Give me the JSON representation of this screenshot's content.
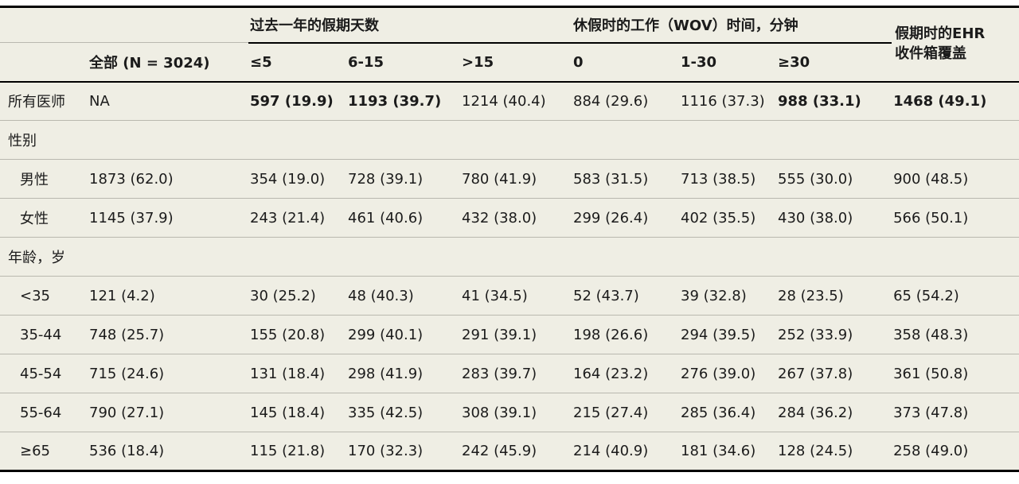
{
  "colors": {
    "table_background": "#efeee4",
    "border_dark": "#000000",
    "border_light": "#b9b8af",
    "text": "#1b1b1b"
  },
  "table": {
    "group_headers": [
      {
        "label": "过去一年的假期天数"
      },
      {
        "label": "休假时的工作（WOV）时间，分钟"
      }
    ],
    "ehr_header": {
      "line1": "假期时的EHR",
      "line2": "收件箱覆盖"
    },
    "sub_headers": [
      "全部 (N = 3024)",
      "≤5",
      "6-15",
      ">15",
      "0",
      "1-30",
      "≥30"
    ],
    "rows": [
      {
        "type": "data",
        "label": "所有医师",
        "indent": false,
        "cells": [
          {
            "text": "NA",
            "bold": false
          },
          {
            "text": "597 (19.9)",
            "bold": true
          },
          {
            "text": "1193 (39.7)",
            "bold": true
          },
          {
            "text": "1214 (40.4)",
            "bold": false
          },
          {
            "text": "884 (29.6)",
            "bold": false
          },
          {
            "text": "1116 (37.3)",
            "bold": false
          },
          {
            "text": "988 (33.1)",
            "bold": true
          },
          {
            "text": "1468 (49.1)",
            "bold": true
          }
        ]
      },
      {
        "type": "section",
        "label": "性别"
      },
      {
        "type": "data",
        "label": "男性",
        "indent": true,
        "cells": [
          {
            "text": "1873 (62.0)",
            "bold": false
          },
          {
            "text": "354 (19.0)",
            "bold": false
          },
          {
            "text": "728 (39.1)",
            "bold": false
          },
          {
            "text": "780 (41.9)",
            "bold": false
          },
          {
            "text": "583 (31.5)",
            "bold": false
          },
          {
            "text": "713 (38.5)",
            "bold": false
          },
          {
            "text": "555 (30.0)",
            "bold": false
          },
          {
            "text": "900 (48.5)",
            "bold": false
          }
        ]
      },
      {
        "type": "data",
        "label": "女性",
        "indent": true,
        "cells": [
          {
            "text": "1145 (37.9)",
            "bold": false
          },
          {
            "text": "243 (21.4)",
            "bold": false
          },
          {
            "text": "461 (40.6)",
            "bold": false
          },
          {
            "text": "432 (38.0)",
            "bold": false
          },
          {
            "text": "299 (26.4)",
            "bold": false
          },
          {
            "text": "402 (35.5)",
            "bold": false
          },
          {
            "text": "430 (38.0)",
            "bold": false
          },
          {
            "text": "566 (50.1)",
            "bold": false
          }
        ]
      },
      {
        "type": "section",
        "label": "年龄，岁"
      },
      {
        "type": "data",
        "label": "<35",
        "indent": true,
        "cells": [
          {
            "text": "121 (4.2)",
            "bold": false
          },
          {
            "text": "30 (25.2)",
            "bold": false
          },
          {
            "text": "48 (40.3)",
            "bold": false
          },
          {
            "text": "41 (34.5)",
            "bold": false
          },
          {
            "text": "52 (43.7)",
            "bold": false
          },
          {
            "text": "39 (32.8)",
            "bold": false
          },
          {
            "text": "28 (23.5)",
            "bold": false
          },
          {
            "text": "65 (54.2)",
            "bold": false
          }
        ]
      },
      {
        "type": "data",
        "label": "35-44",
        "indent": true,
        "cells": [
          {
            "text": "748 (25.7)",
            "bold": false
          },
          {
            "text": "155 (20.8)",
            "bold": false
          },
          {
            "text": "299 (40.1)",
            "bold": false
          },
          {
            "text": "291 (39.1)",
            "bold": false
          },
          {
            "text": "198 (26.6)",
            "bold": false
          },
          {
            "text": "294 (39.5)",
            "bold": false
          },
          {
            "text": "252 (33.9)",
            "bold": false
          },
          {
            "text": "358 (48.3)",
            "bold": false
          }
        ]
      },
      {
        "type": "data",
        "label": "45-54",
        "indent": true,
        "cells": [
          {
            "text": "715 (24.6)",
            "bold": false
          },
          {
            "text": "131 (18.4)",
            "bold": false
          },
          {
            "text": "298 (41.9)",
            "bold": false
          },
          {
            "text": "283 (39.7)",
            "bold": false
          },
          {
            "text": "164 (23.2)",
            "bold": false
          },
          {
            "text": "276 (39.0)",
            "bold": false
          },
          {
            "text": "267 (37.8)",
            "bold": false
          },
          {
            "text": "361 (50.8)",
            "bold": false
          }
        ]
      },
      {
        "type": "data",
        "label": "55-64",
        "indent": true,
        "cells": [
          {
            "text": "790 (27.1)",
            "bold": false
          },
          {
            "text": "145 (18.4)",
            "bold": false
          },
          {
            "text": "335 (42.5)",
            "bold": false
          },
          {
            "text": "308 (39.1)",
            "bold": false
          },
          {
            "text": "215 (27.4)",
            "bold": false
          },
          {
            "text": "285 (36.4)",
            "bold": false
          },
          {
            "text": "284 (36.2)",
            "bold": false
          },
          {
            "text": "373 (47.8)",
            "bold": false
          }
        ]
      },
      {
        "type": "data",
        "label": "≥65",
        "indent": true,
        "cells": [
          {
            "text": "536 (18.4)",
            "bold": false
          },
          {
            "text": "115 (21.8)",
            "bold": false
          },
          {
            "text": "170 (32.3)",
            "bold": false
          },
          {
            "text": "242 (45.9)",
            "bold": false
          },
          {
            "text": "214 (40.9)",
            "bold": false
          },
          {
            "text": "181 (34.6)",
            "bold": false
          },
          {
            "text": "128 (24.5)",
            "bold": false
          },
          {
            "text": "258 (49.0)",
            "bold": false
          }
        ]
      }
    ]
  }
}
